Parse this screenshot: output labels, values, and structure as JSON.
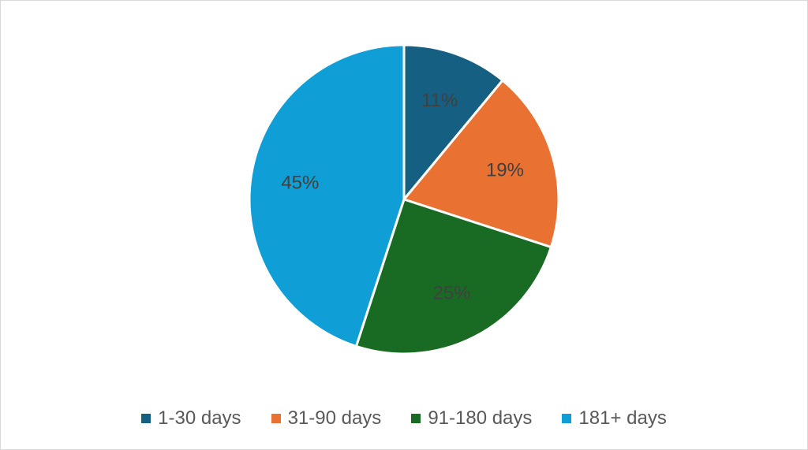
{
  "chart_data": {
    "type": "pie",
    "title": "",
    "legend_position": "bottom",
    "categories": [
      "1-30 days",
      "31-90 days",
      "91-180 days",
      "181+ days"
    ],
    "values": [
      11,
      19,
      25,
      45
    ],
    "labels": [
      "11%",
      "19%",
      "25%",
      "45%"
    ],
    "colors": [
      "#156082",
      "#e97132",
      "#196b24",
      "#0f9ed5"
    ]
  }
}
